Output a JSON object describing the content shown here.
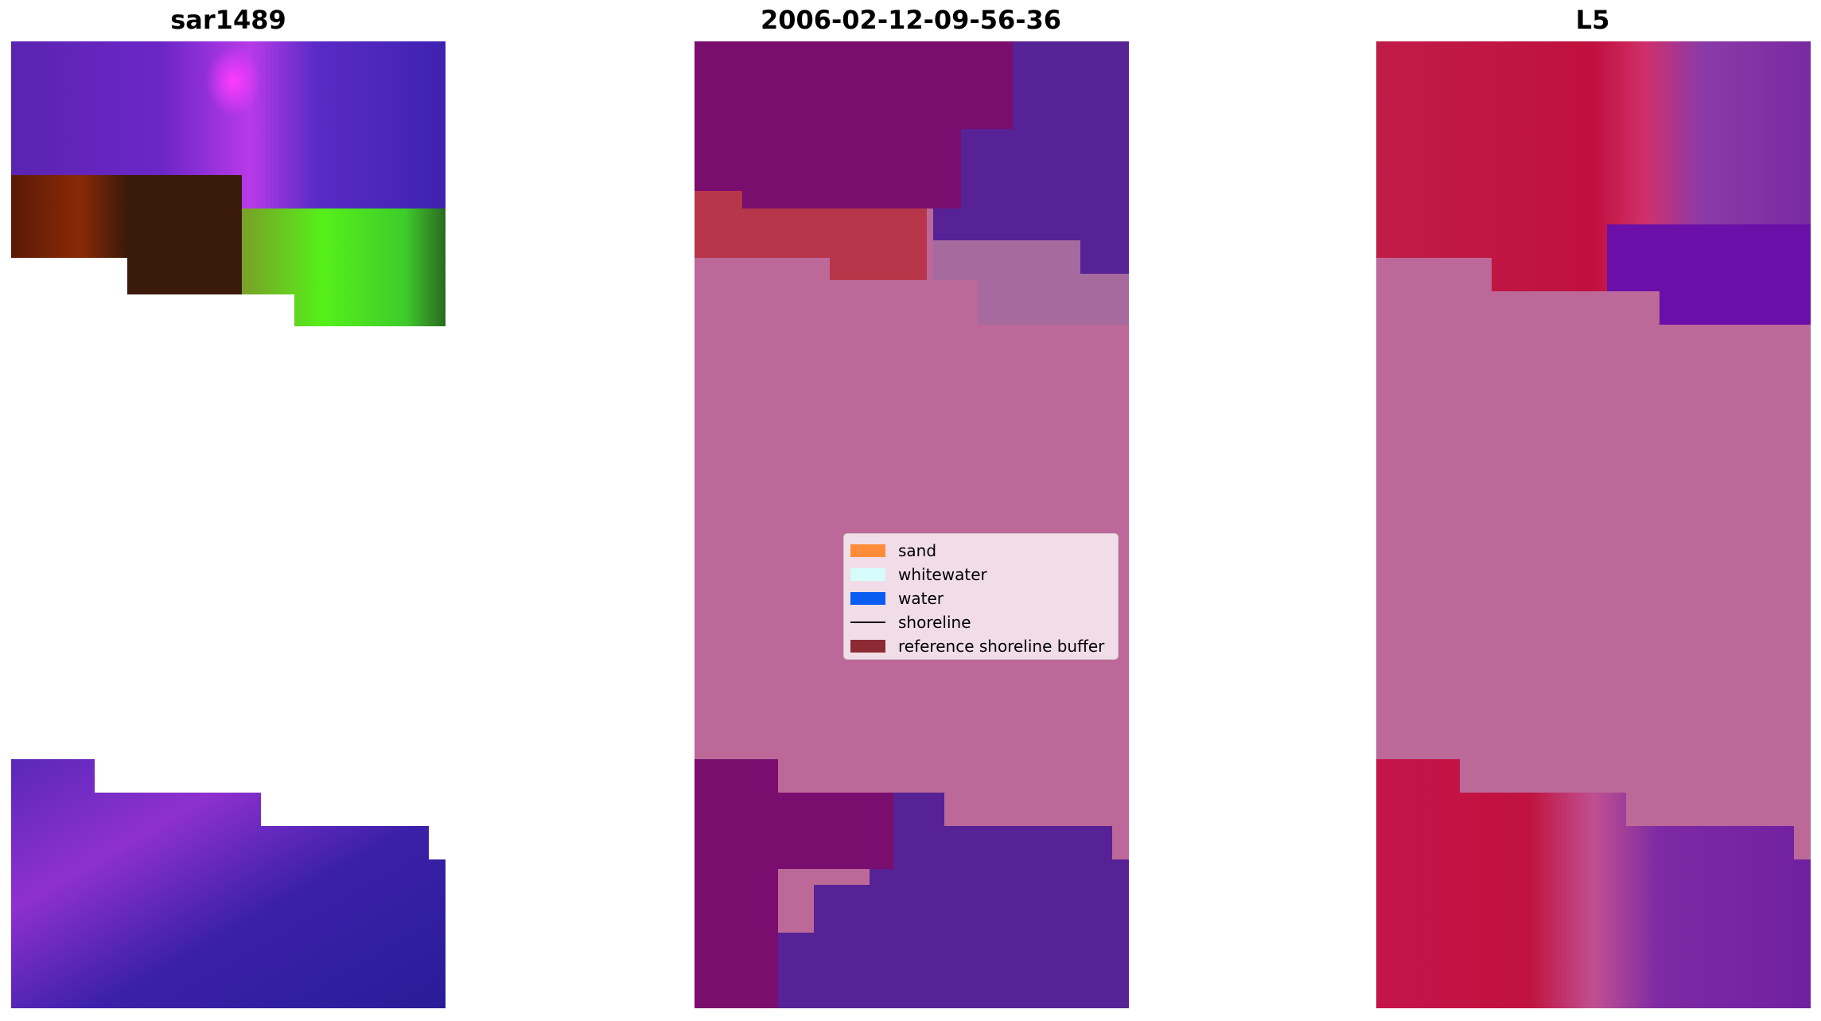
{
  "titles": {
    "left": "sar1489",
    "center": "2006-02-12-09-56-36",
    "right": "L5"
  },
  "legend": {
    "items": [
      {
        "label": "sand",
        "color": "#ff8c3b"
      },
      {
        "label": "whitewater",
        "color": "#d6fbfb"
      },
      {
        "label": "water",
        "color": "#0b5cf0"
      },
      {
        "label": "shoreline",
        "color": "#000000"
      },
      {
        "label": "reference shoreline buffer",
        "color": "#8c2a33"
      }
    ]
  }
}
